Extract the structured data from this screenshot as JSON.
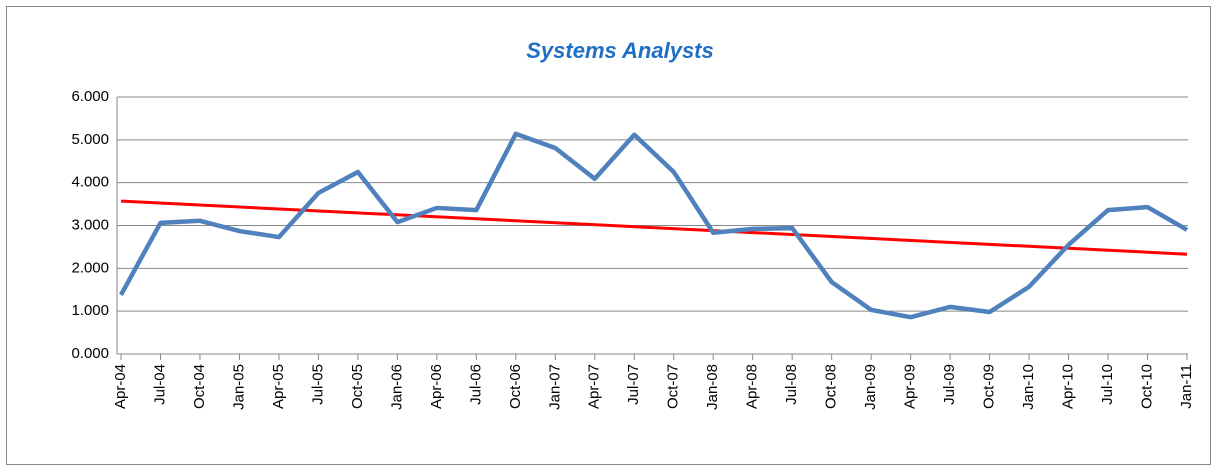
{
  "chart_data": {
    "type": "line",
    "title": "Systems Analysts",
    "categories": [
      "Apr-04",
      "Jul-04",
      "Oct-04",
      "Jan-05",
      "Apr-05",
      "Jul-05",
      "Oct-05",
      "Jan-06",
      "Apr-06",
      "Jul-06",
      "Oct-06",
      "Jan-07",
      "Apr-07",
      "Jul-07",
      "Oct-07",
      "Jan-08",
      "Apr-08",
      "Jul-08",
      "Oct-08",
      "Jan-09",
      "Apr-09",
      "Jul-09",
      "Oct-09",
      "Jan-10",
      "Apr-10",
      "Jul-10",
      "Oct-10",
      "Jan-11"
    ],
    "series": [
      {
        "name": "Systems Analysts",
        "color": "#4f81bd",
        "values": [
          1.38,
          3.06,
          3.11,
          2.87,
          2.73,
          3.76,
          4.25,
          3.08,
          3.41,
          3.36,
          5.14,
          4.81,
          4.09,
          5.12,
          4.25,
          2.83,
          2.92,
          2.94,
          1.68,
          1.03,
          0.86,
          1.1,
          0.98,
          1.57,
          2.55,
          3.36,
          3.43,
          2.9
        ]
      }
    ],
    "trendline": {
      "color": "#ff0000",
      "start": 3.57,
      "end": 2.33
    },
    "ylim": [
      0,
      6
    ],
    "yticks": [
      {
        "value": 0,
        "label": "0.000"
      },
      {
        "value": 1,
        "label": "1.000"
      },
      {
        "value": 2,
        "label": "2.000"
      },
      {
        "value": 3,
        "label": "3.000"
      },
      {
        "value": 4,
        "label": "4.000"
      },
      {
        "value": 5,
        "label": "5.000"
      },
      {
        "value": 6,
        "label": "6.000"
      }
    ],
    "grid": true
  }
}
